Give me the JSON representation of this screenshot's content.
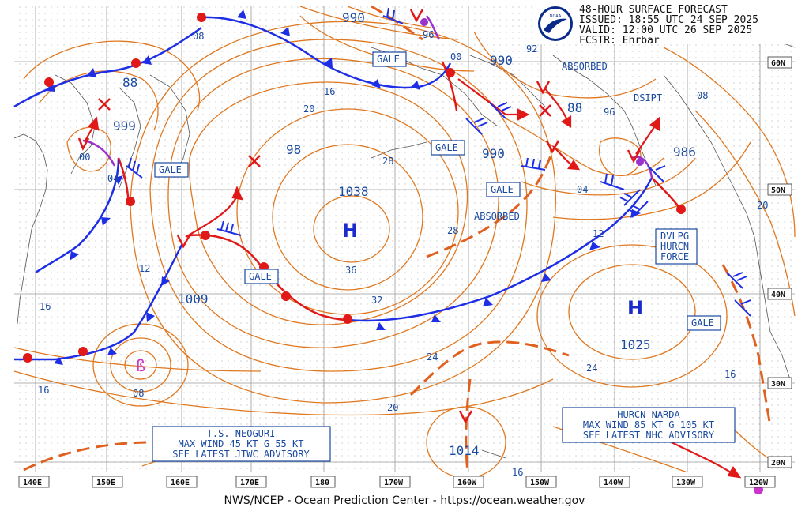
{
  "header": {
    "line1": "48-HOUR SURFACE FORECAST",
    "line2": "ISSUED: 18:55 UTC 24 SEP 2025",
    "line3": "VALID:  12:00 UTC 26 SEP 2025",
    "line4": "FCSTR:  Ehrbar",
    "logo_text": "NOAA"
  },
  "footer": "NWS/NCEP - Ocean Prediction Center - https://ocean.weather.gov",
  "lon_labels": [
    "140E",
    "150E",
    "160E",
    "170E",
    "180",
    "170W",
    "160W",
    "150W",
    "140W",
    "130W",
    "120W"
  ],
  "lat_labels": [
    "60N",
    "50N",
    "40N",
    "30N",
    "20N"
  ],
  "systems": {
    "high_main": {
      "symbol": "H",
      "pressure": "1038"
    },
    "high_east": {
      "symbol": "H",
      "pressure": "1025"
    },
    "low_labels": [
      "990",
      "990",
      "990",
      "999",
      "98",
      "88",
      "88",
      "1009",
      "986",
      "1014",
      "00",
      "00",
      "92",
      "96"
    ]
  },
  "isobar_labels": [
    "08",
    "16",
    "20",
    "28",
    "28",
    "36",
    "32",
    "24",
    "24",
    "04",
    "12",
    "12",
    "16",
    "20",
    "16",
    "08",
    "20",
    "16",
    "04",
    "08",
    "96"
  ],
  "boxes": {
    "gale": "GALE",
    "absorbed": "ABSORBED",
    "dsipt": "DSIPT",
    "dvlpg": [
      "DVLPG",
      "HURCN",
      "FORCE"
    ],
    "neoguri": [
      "T.S. NEOGURI",
      "MAX WIND 45 KT G 55 KT",
      "SEE LATEST JTWC ADVISORY"
    ],
    "narda": [
      "HURCN NARDA",
      "MAX WIND 85 KT G 105 KT",
      "SEE LATEST NHC ADVISORY"
    ]
  },
  "colors": {
    "isobar": "#e07820",
    "cold_front": "#1e2ee6",
    "warm_front": "#e01818",
    "occluded": "#9933cc",
    "trough": "#e06020",
    "text_blue": "#1a4aa0",
    "grid": "#a0a0a0"
  }
}
